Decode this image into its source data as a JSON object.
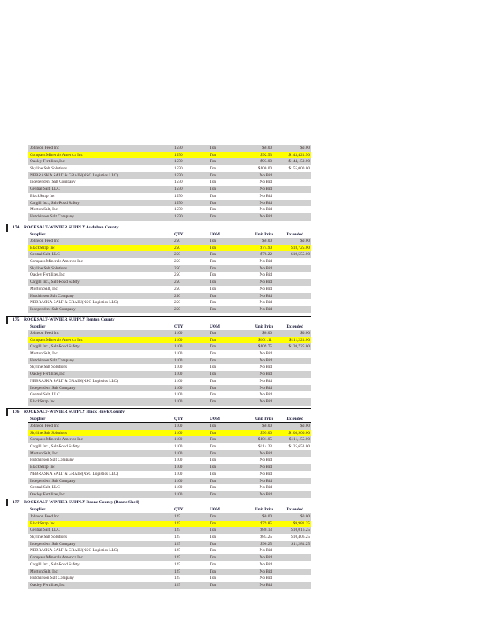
{
  "columns": {
    "supplier": "Supplier",
    "qty": "QTY",
    "uom": "UOM",
    "unit_price": "Unit Price",
    "extended": "Extended"
  },
  "colors": {
    "winner_highlight": "#ffff00",
    "alt_row": "#d0d0d0"
  },
  "sections": [
    {
      "number": "",
      "title": "",
      "show_header": false,
      "winner": 1,
      "rows": [
        [
          "Johnson Feed Inc",
          "1550",
          "Ton",
          "$0.00",
          "$0.00"
        ],
        [
          "Compass Minerals America Inc",
          "1550",
          "Ton",
          "$92.53",
          "$143,421.50"
        ],
        [
          "Oakley Fertilizer,Inc.",
          "1550",
          "Ton",
          "$93.00",
          "$144,150.00"
        ],
        [
          "Skyline Salt Solutions",
          "1550",
          "Ton",
          "$100.00",
          "$155,000.00"
        ],
        [
          "NEBRASKA SALT & GRAIN(NSG Logistics LLC)",
          "1550",
          "Ton",
          "No Bid",
          ""
        ],
        [
          "Independent Salt Company",
          "1550",
          "Ton",
          "No Bid",
          ""
        ],
        [
          "Central Salt, LLC",
          "1550",
          "Ton",
          "No Bid",
          ""
        ],
        [
          "BlackStrap Inc",
          "1550",
          "Ton",
          "No Bid",
          ""
        ],
        [
          "Cargill Inc., Salt-Road Safety",
          "1550",
          "Ton",
          "No Bid",
          ""
        ],
        [
          "Morton Salt, Inc.",
          "1550",
          "Ton",
          "No Bid",
          ""
        ],
        [
          "Hutchinson Salt Company",
          "1550",
          "Ton",
          "No Bid",
          ""
        ]
      ]
    },
    {
      "number": "174",
      "title": "ROCKSALT-WINTER SUPPLY Audubon County",
      "show_header": true,
      "winner": 1,
      "rows": [
        [
          "Johnson Feed Inc",
          "250",
          "Ton",
          "$0.00",
          "$0.00"
        ],
        [
          "BlackStrap Inc",
          "250",
          "Ton",
          "$74.90",
          "$18,725.00"
        ],
        [
          "Central Salt, LLC",
          "250",
          "Ton",
          "$78.22",
          "$19,555.00"
        ],
        [
          "Compass Minerals America Inc",
          "250",
          "Ton",
          "No Bid",
          ""
        ],
        [
          "Skyline Salt Solutions",
          "250",
          "Ton",
          "No Bid",
          ""
        ],
        [
          "Oakley Fertilizer,Inc.",
          "250",
          "Ton",
          "No Bid",
          ""
        ],
        [
          "Cargill Inc., Salt-Road Safety",
          "250",
          "Ton",
          "No Bid",
          ""
        ],
        [
          "Morton Salt, Inc.",
          "250",
          "Ton",
          "No Bid",
          ""
        ],
        [
          "Hutchinson Salt Company",
          "250",
          "Ton",
          "No Bid",
          ""
        ],
        [
          "NEBRASKA SALT & GRAIN(NSG Logistics LLC)",
          "250",
          "Ton",
          "No Bid",
          ""
        ],
        [
          "Independent Salt Company",
          "250",
          "Ton",
          "No Bid",
          ""
        ]
      ]
    },
    {
      "number": "175",
      "title": "ROCKSALT-WINTER SUPPLY Benton County",
      "show_header": true,
      "winner": 1,
      "rows": [
        [
          "Johnson Feed Inc",
          "1100",
          "Ton",
          "$0.00",
          "$0.00"
        ],
        [
          "Compass Minerals America Inc",
          "1100",
          "Ton",
          "$101.11",
          "$111,221.00"
        ],
        [
          "Cargill Inc., Salt-Road Safety",
          "1100",
          "Ton",
          "$109.75",
          "$120,725.00"
        ],
        [
          "Morton Salt, Inc.",
          "1100",
          "Ton",
          "No Bid",
          ""
        ],
        [
          "Hutchinson Salt Company",
          "1100",
          "Ton",
          "No Bid",
          ""
        ],
        [
          "Skyline Salt Solutions",
          "1100",
          "Ton",
          "No Bid",
          ""
        ],
        [
          "Oakley Fertilizer,Inc.",
          "1100",
          "Ton",
          "No Bid",
          ""
        ],
        [
          "NEBRASKA SALT & GRAIN(NSG Logistics LLC)",
          "1100",
          "Ton",
          "No Bid",
          ""
        ],
        [
          "Independent Salt Company",
          "1100",
          "Ton",
          "No Bid",
          ""
        ],
        [
          "Central Salt, LLC",
          "1100",
          "Ton",
          "No Bid",
          ""
        ],
        [
          "BlackStrap Inc",
          "1100",
          "Ton",
          "No Bid",
          ""
        ]
      ]
    },
    {
      "number": "176",
      "title": "ROCKSALT-WINTER SUPPLY Black Hawk County",
      "show_header": true,
      "winner": 1,
      "rows": [
        [
          "Johnson Feed Inc",
          "1100",
          "Ton",
          "$0.00",
          "$0.00"
        ],
        [
          "Skyline Salt Solutions",
          "1100",
          "Ton",
          "$99.00",
          "$108,900.00"
        ],
        [
          "Compass Minerals America Inc",
          "1100",
          "Ton",
          "$101.05",
          "$111,155.00"
        ],
        [
          "Cargill Inc., Salt-Road Safety",
          "1100",
          "Ton",
          "$114.23",
          "$125,653.00"
        ],
        [
          "Morton Salt, Inc.",
          "1100",
          "Ton",
          "No Bid",
          ""
        ],
        [
          "Hutchinson Salt Company",
          "1100",
          "Ton",
          "No Bid",
          ""
        ],
        [
          "BlackStrap Inc",
          "1100",
          "Ton",
          "No Bid",
          ""
        ],
        [
          "NEBRASKA SALT & GRAIN(NSG Logistics LLC)",
          "1100",
          "Ton",
          "No Bid",
          ""
        ],
        [
          "Independent Salt Company",
          "1100",
          "Ton",
          "No Bid",
          ""
        ],
        [
          "Central Salt, LLC",
          "1100",
          "Ton",
          "No Bid",
          ""
        ],
        [
          "Oakley Fertilizer,Inc.",
          "1100",
          "Ton",
          "No Bid",
          ""
        ]
      ]
    },
    {
      "number": "177",
      "title": "ROCKSALT-WINTER SUPPLY Boone County (Boone Shed)",
      "show_header": true,
      "winner": 1,
      "rows": [
        [
          "Johnson Feed Inc",
          "125",
          "Ton",
          "$0.00",
          "$0.00"
        ],
        [
          "BlackStrap Inc",
          "125",
          "Ton",
          "$79.85",
          "$9,981.25"
        ],
        [
          "Central Salt, LLC",
          "125",
          "Ton",
          "$80.13",
          "$10,016.25"
        ],
        [
          "Skyline Salt Solutions",
          "125",
          "Ton",
          "$83.25",
          "$10,406.25"
        ],
        [
          "Independent Salt Company",
          "125",
          "Ton",
          "$90.25",
          "$11,281.25"
        ],
        [
          "NEBRASKA SALT & GRAIN(NSG Logistics LLC)",
          "125",
          "Ton",
          "No Bid",
          ""
        ],
        [
          "Compass Minerals America Inc",
          "125",
          "Ton",
          "No Bid",
          ""
        ],
        [
          "Cargill Inc., Salt-Road Safety",
          "125",
          "Ton",
          "No Bid",
          ""
        ],
        [
          "Morton Salt, Inc.",
          "125",
          "Ton",
          "No Bid",
          ""
        ],
        [
          "Hutchinson Salt Company",
          "125",
          "Ton",
          "No Bid",
          ""
        ],
        [
          "Oakley Fertilizer,Inc.",
          "125",
          "Ton",
          "No Bid",
          ""
        ]
      ]
    }
  ]
}
